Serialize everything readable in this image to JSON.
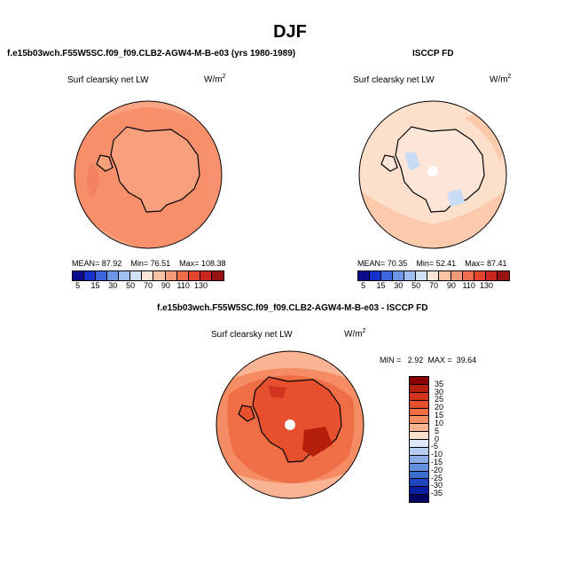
{
  "title": "DJF",
  "panels": [
    {
      "title": "f.e15b03wch.F55W5SC.f09_f09.CLB2-AGW4-M-B-e03 (yrs 1980-1989)",
      "variable": "Surf clearsky net LW",
      "units": "W/m",
      "units_exp": "2",
      "stats": {
        "mean_label": "MEAN=",
        "mean": "87.92",
        "min_label": "Min=",
        "min": "76.51",
        "max_label": "Max=",
        "max": "108.38"
      }
    },
    {
      "title": "ISCCP FD",
      "variable": "Surf clearsky net LW",
      "units": "W/m",
      "units_exp": "2",
      "stats": {
        "mean_label": "MEAN=",
        "mean": "70.35",
        "min_label": "Min=",
        "min": "52.41",
        "max_label": "Max=",
        "max": "87.41"
      }
    },
    {
      "title": "f.e15b03wch.F55W5SC.f09_f09.CLB2-AGW4-M-B-e03 - ISCCP FD",
      "variable": "Surf clearsky net LW",
      "units": "W/m",
      "units_exp": "2",
      "stats": {
        "min_label": "MIN =",
        "min": "2.92",
        "max_label": "MAX =",
        "max": "39.64"
      }
    }
  ],
  "abs_colorbar": {
    "labels": [
      "5",
      "15",
      "30",
      "50",
      "70",
      "90",
      "110",
      "130"
    ],
    "colors": [
      "#0a0a8c",
      "#1432c8",
      "#3c64dc",
      "#6e96e6",
      "#a0bef0",
      "#d2e1f7",
      "#fde6d7",
      "#fbc3a5",
      "#f79a78",
      "#ef6e4b",
      "#e1462d",
      "#c8281e",
      "#961414"
    ]
  },
  "diff_colorbar": {
    "labels": [
      "35",
      "30",
      "25",
      "20",
      "15",
      "10",
      "5",
      "0",
      "-5",
      "-10",
      "-15",
      "-20",
      "-25",
      "-30",
      "-35"
    ],
    "colors": [
      "#8b0000",
      "#b41e0a",
      "#d2321e",
      "#e6502d",
      "#f06e46",
      "#f58c64",
      "#fab494",
      "#fde0cc",
      "#dce8f8",
      "#b4cdf0",
      "#8caee6",
      "#6490dc",
      "#3c6ed2",
      "#1e46be",
      "#0a1ea0",
      "#000064"
    ]
  },
  "colors": {
    "model_map": "#f9a078",
    "obs_map": "#fbdccb",
    "diff_map": "#f06e46",
    "ice_mask": "#ffffff"
  }
}
